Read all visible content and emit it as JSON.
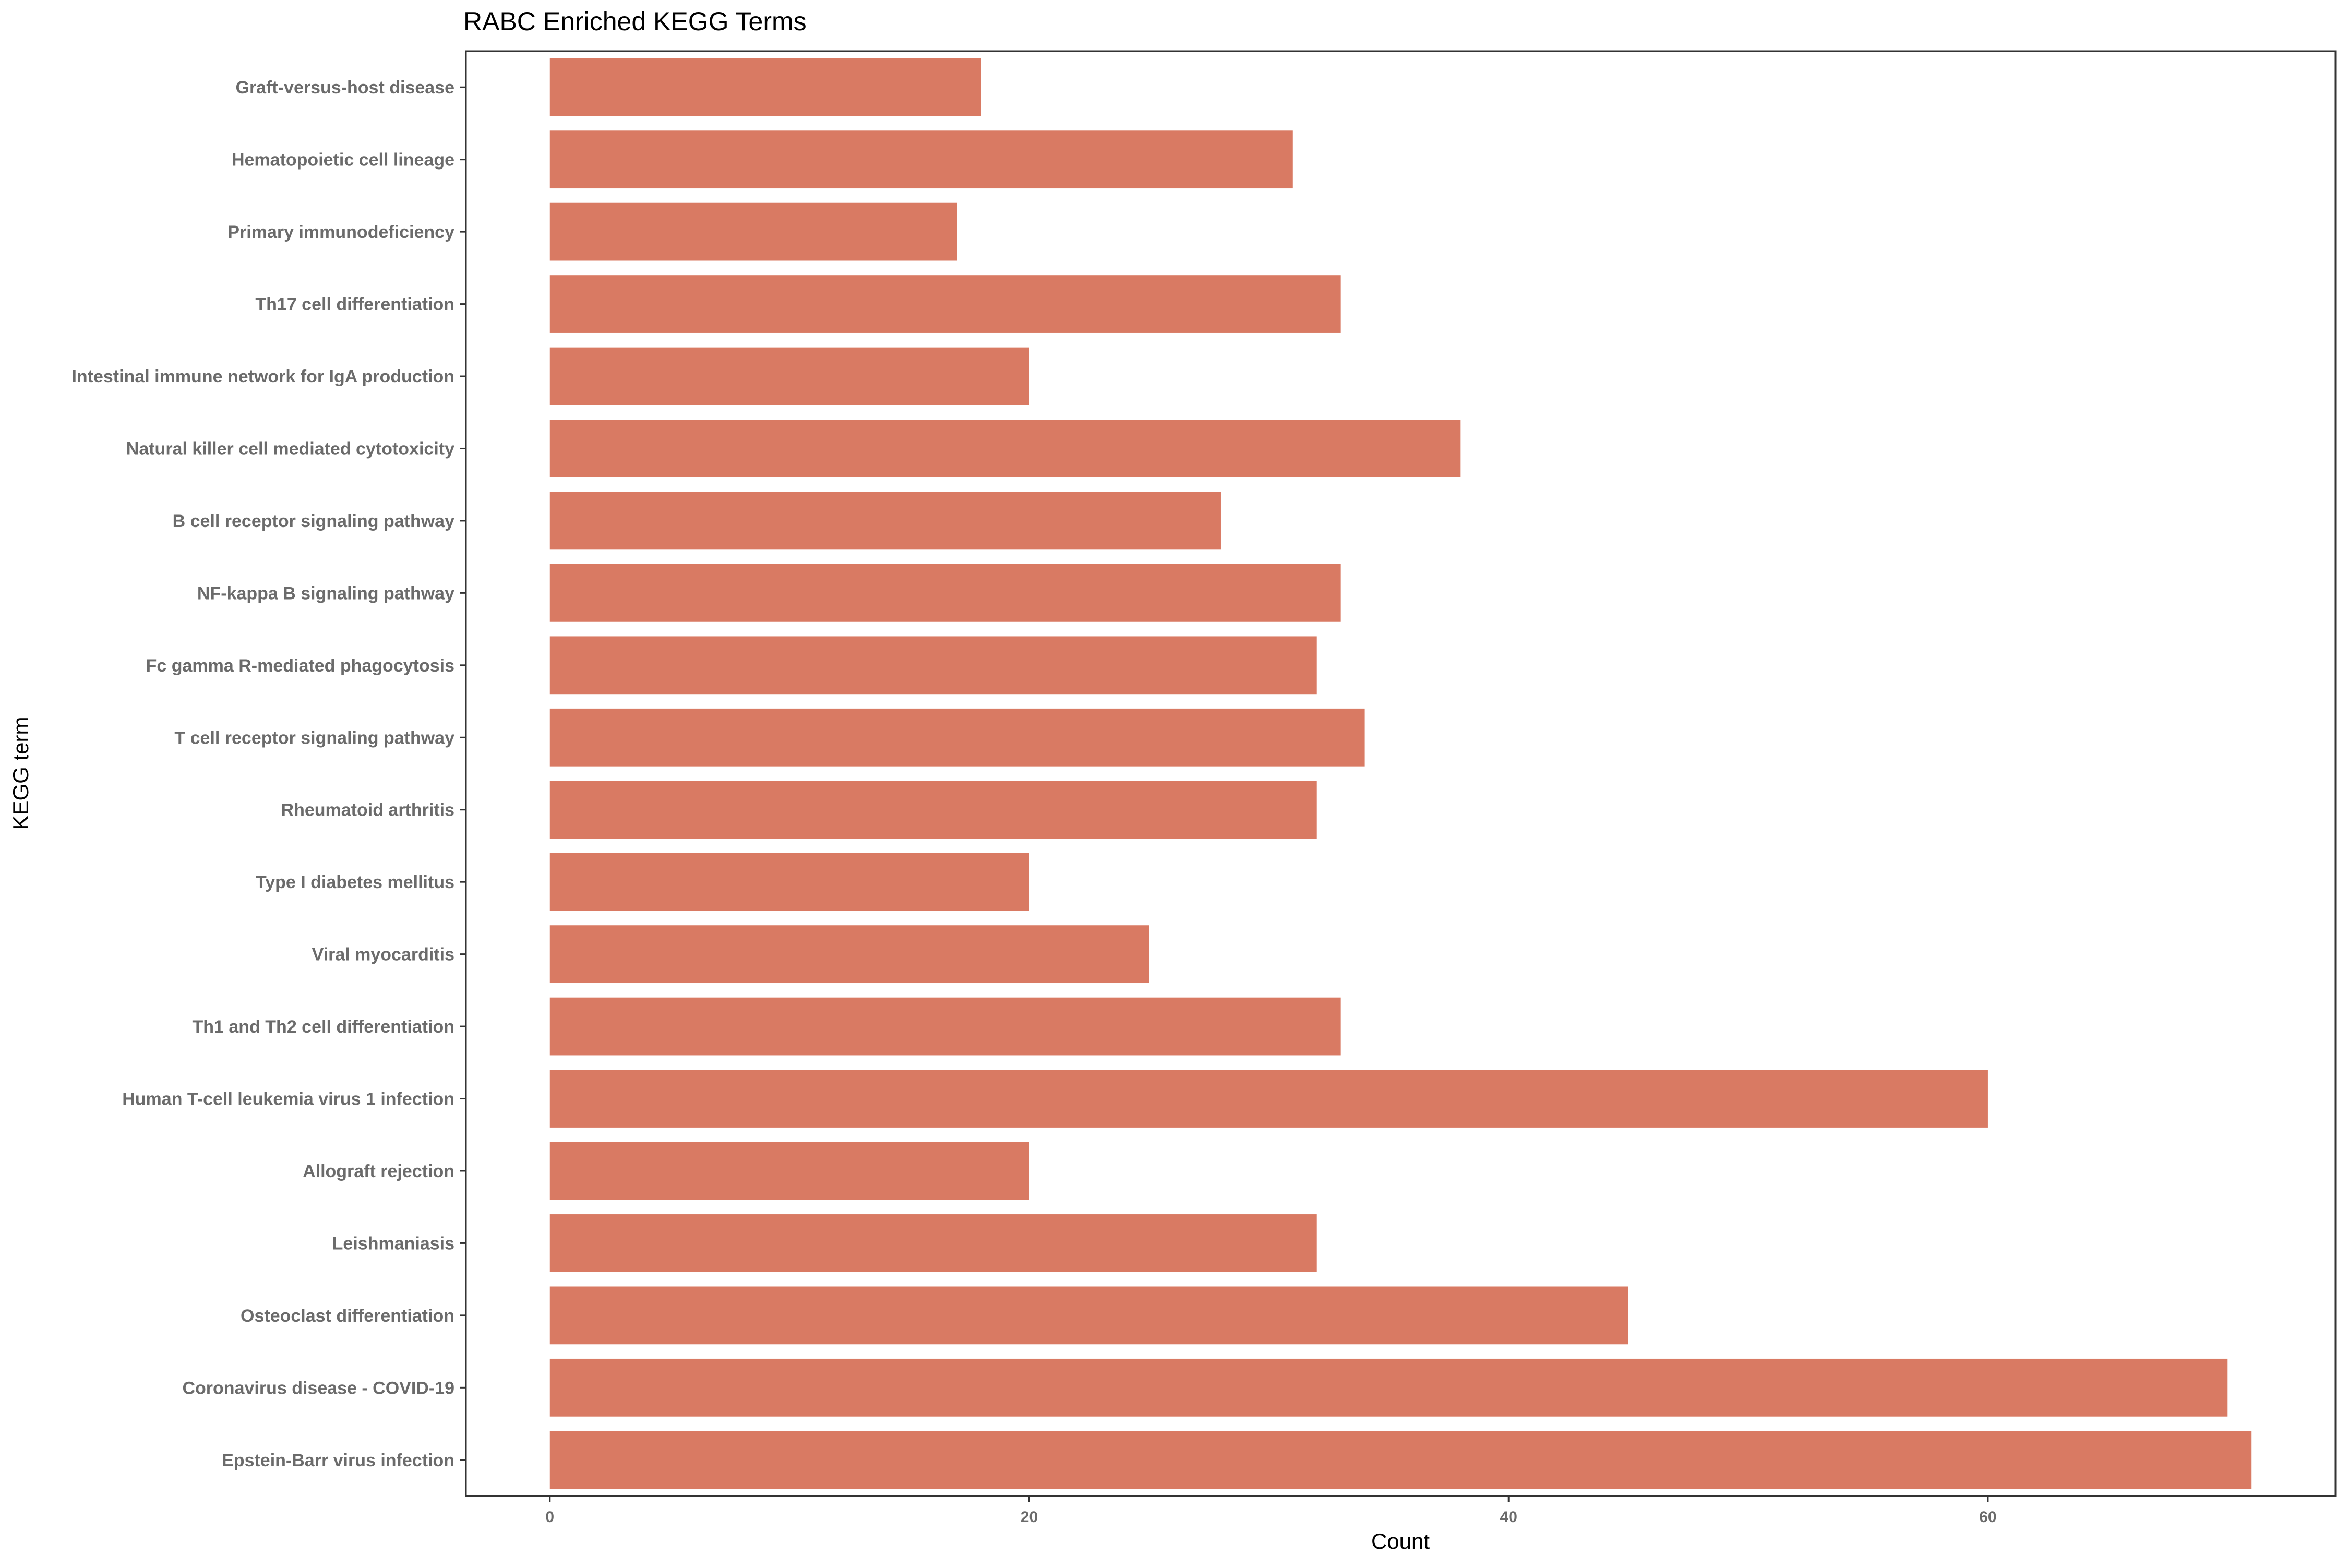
{
  "chart_data": {
    "type": "bar",
    "orientation": "horizontal",
    "title": "RABC Enriched KEGG Terms",
    "xlabel": "Count",
    "ylabel": "KEGG term",
    "categories": [
      "Graft-versus-host disease",
      "Hematopoietic cell lineage",
      "Primary immunodeficiency",
      "Th17 cell differentiation",
      "Intestinal immune network for IgA production",
      "Natural killer cell mediated cytotoxicity",
      "B cell receptor signaling pathway",
      "NF-kappa B signaling pathway",
      "Fc gamma R-mediated phagocytosis",
      "T cell receptor signaling pathway",
      "Rheumatoid arthritis",
      "Type I diabetes mellitus",
      "Viral myocarditis",
      "Th1 and Th2 cell differentiation",
      "Human T-cell leukemia virus 1 infection",
      "Allograft rejection",
      "Leishmaniasis",
      "Osteoclast differentiation",
      "Coronavirus disease - COVID-19",
      "Epstein-Barr virus infection"
    ],
    "values": [
      18,
      31,
      17,
      33,
      20,
      38,
      28,
      33,
      32,
      34,
      32,
      20,
      25,
      33,
      60,
      20,
      32,
      45,
      70,
      71
    ],
    "xlim": [
      -3.5,
      74.5
    ],
    "xticks": [
      0,
      20,
      40,
      60
    ],
    "xtick_labels": [
      "0",
      "20",
      "40",
      "60"
    ],
    "bar_color": "#D97A63",
    "grid": false,
    "legend": "none"
  }
}
